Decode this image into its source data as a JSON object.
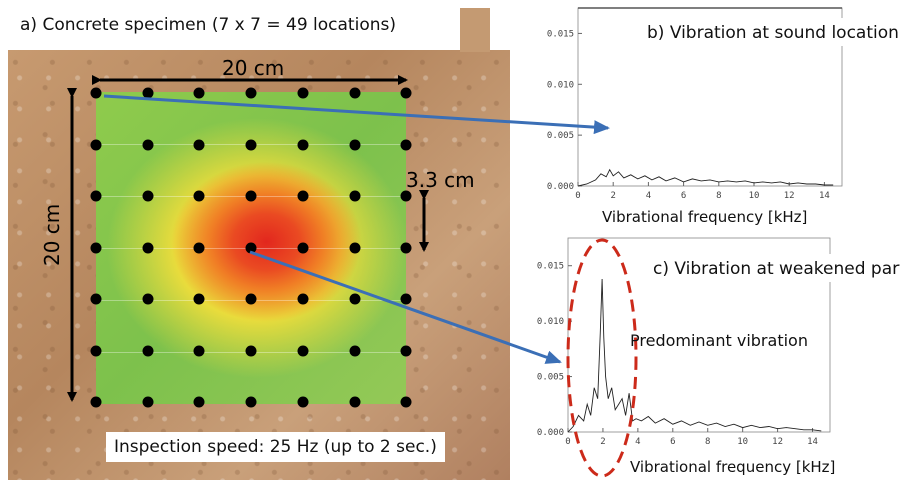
{
  "panel_a": {
    "title": "a) Concrete specimen (7 x 7 = 49 locations)",
    "width_label": "20 cm",
    "height_label": "20 cm",
    "spacing_label": "3.3 cm",
    "speed_label": "Inspection speed: 25 Hz (up to 2 sec.)",
    "grid": {
      "rows": 7,
      "cols": 7
    }
  },
  "panel_b": {
    "title": "b) Vibration at sound location",
    "xlabel": "Vibrational frequency [kHz]",
    "x_ticks": [
      "0",
      "2",
      "4",
      "6",
      "8",
      "10",
      "12",
      "14"
    ],
    "y_ticks": [
      "0.000",
      "0.005",
      "0.010",
      "0.015"
    ]
  },
  "panel_c": {
    "title": "c) Vibration at weakened part",
    "xlabel": "Vibrational frequency [kHz]",
    "x_ticks": [
      "0",
      "2",
      "4",
      "6",
      "8",
      "10",
      "12",
      "14"
    ],
    "y_ticks": [
      "0.000",
      "0.005",
      "0.010",
      "0.015"
    ],
    "annotation": "Predominant vibration"
  },
  "colors": {
    "arrow": "#3b6fb6",
    "ellipse": "#cc2a1a",
    "hot": "#e2271e",
    "sound": "#86c64c"
  },
  "chart_data": [
    {
      "type": "line",
      "name": "sound location",
      "xlabel": "Vibrational frequency [kHz]",
      "xlim": [
        0,
        15
      ],
      "ylim": [
        0,
        0.0175
      ],
      "x": [
        0.0,
        0.5,
        1.0,
        1.3,
        1.6,
        1.8,
        2.0,
        2.3,
        2.6,
        3.0,
        3.4,
        3.8,
        4.2,
        4.6,
        5.0,
        5.5,
        6.0,
        6.5,
        7.0,
        7.5,
        8.0,
        8.5,
        9.0,
        9.5,
        10.0,
        10.5,
        11.0,
        11.5,
        12.0,
        12.5,
        13.0,
        13.5,
        14.0,
        14.5
      ],
      "y": [
        0.0,
        0.0002,
        0.0006,
        0.0012,
        0.0009,
        0.0016,
        0.001,
        0.0014,
        0.0008,
        0.0011,
        0.0007,
        0.001,
        0.0006,
        0.0009,
        0.0005,
        0.0008,
        0.0004,
        0.0007,
        0.0005,
        0.0006,
        0.0004,
        0.0005,
        0.0004,
        0.0005,
        0.0003,
        0.0004,
        0.0003,
        0.0004,
        0.0002,
        0.0003,
        0.0002,
        0.0002,
        0.0001,
        0.0001
      ]
    },
    {
      "type": "line",
      "name": "weakened part",
      "xlabel": "Vibrational frequency [kHz]",
      "xlim": [
        0,
        15
      ],
      "ylim": [
        0,
        0.0175
      ],
      "x": [
        0.0,
        0.3,
        0.6,
        0.9,
        1.1,
        1.3,
        1.5,
        1.7,
        1.85,
        1.95,
        2.05,
        2.15,
        2.3,
        2.5,
        2.7,
        2.9,
        3.1,
        3.3,
        3.5,
        3.7,
        3.9,
        4.2,
        4.6,
        5.0,
        5.5,
        6.0,
        6.5,
        7.0,
        7.5,
        8.0,
        8.5,
        9.0,
        9.5,
        10.0,
        10.5,
        11.0,
        11.5,
        12.0,
        12.5,
        13.0,
        13.5,
        14.0,
        14.5
      ],
      "y": [
        0.0,
        0.0005,
        0.0015,
        0.001,
        0.0025,
        0.0015,
        0.004,
        0.003,
        0.009,
        0.0138,
        0.0085,
        0.005,
        0.003,
        0.004,
        0.002,
        0.0025,
        0.003,
        0.0015,
        0.0035,
        0.001,
        0.0012,
        0.001,
        0.0014,
        0.0008,
        0.0012,
        0.0007,
        0.001,
        0.0006,
        0.0009,
        0.0006,
        0.0008,
        0.0005,
        0.0007,
        0.0004,
        0.0006,
        0.0004,
        0.0005,
        0.0003,
        0.0004,
        0.0003,
        0.0002,
        0.0002,
        0.0001
      ]
    }
  ]
}
